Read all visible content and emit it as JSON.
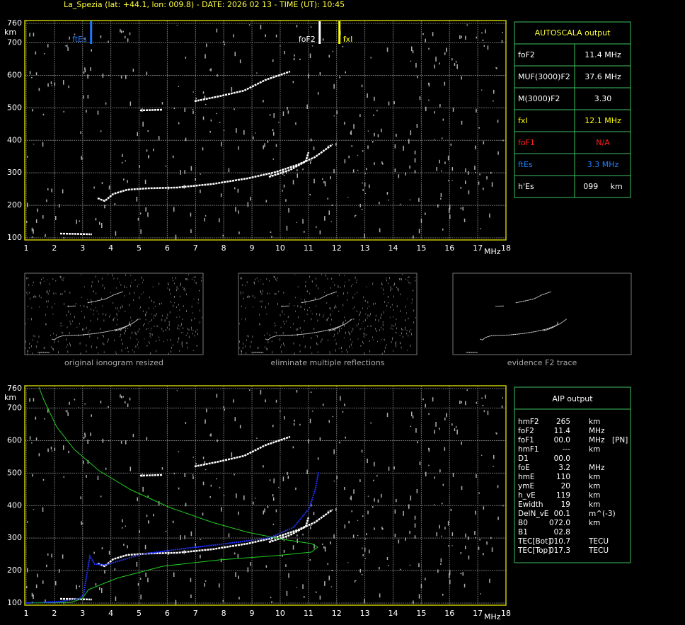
{
  "header": {
    "title": "La_Spezia (lat: +44.1, lon: 009.8) - DATE: 2026 02 13 - TIME (UT): 10:45"
  },
  "ionogram_top": {
    "xticks": [
      1,
      2,
      3,
      4,
      5,
      6,
      7,
      8,
      9,
      10,
      11,
      12,
      13,
      14,
      15,
      16,
      17,
      18
    ],
    "x_unit": "MHz",
    "yticks": [
      100,
      200,
      300,
      400,
      500,
      600,
      700,
      760
    ],
    "y_unit": "km",
    "markers": [
      {
        "label": "ftEs",
        "value": 3.3,
        "color": "#1e78ff"
      },
      {
        "label": "foF2",
        "value": 11.4,
        "color": "#ffffff"
      },
      {
        "label": "fxI",
        "value": 12.1,
        "color": "#ffff00"
      }
    ]
  },
  "autoscala": {
    "title": "AUTOSCALA output",
    "rows": [
      {
        "label": "foF2",
        "value": "11.4 MHz",
        "color": "#ffffff"
      },
      {
        "label": "MUF(3000)F2",
        "value": "37.6 MHz",
        "color": "#ffffff"
      },
      {
        "label": "M(3000)F2",
        "value": "3.30",
        "color": "#ffffff"
      },
      {
        "label": "fxI",
        "value": "12.1 MHz",
        "color": "#ffff00"
      },
      {
        "label": "foF1",
        "value": "N/A",
        "color": "#ff2020"
      },
      {
        "label": "ftEs",
        "value": "3.3 MHz",
        "color": "#2080ff"
      },
      {
        "label": "h'Es",
        "value": "099     km",
        "color": "#ffffff"
      }
    ]
  },
  "thumbnails": [
    "original ionogram resized",
    "eliminate multiple reflections",
    "evidence F2 trace"
  ],
  "ionogram_bottom": {
    "xticks": [
      1,
      2,
      3,
      4,
      5,
      6,
      7,
      8,
      9,
      10,
      11,
      12,
      13,
      14,
      15,
      16,
      17,
      18
    ],
    "x_unit": "MHz",
    "yticks": [
      100,
      200,
      300,
      400,
      500,
      600,
      700,
      760
    ],
    "y_unit": "km"
  },
  "aip": {
    "title": "AIP output",
    "rows": [
      [
        "hmF2",
        "265",
        "km"
      ],
      [
        "foF2",
        "11.4",
        "MHz"
      ],
      [
        "foF1",
        "00.0",
        "MHz",
        "[PN]"
      ],
      [
        "hmF1",
        "---",
        "km"
      ],
      [
        "D1",
        "00.0"
      ],
      [
        "foE",
        "3.2",
        "MHz"
      ],
      [
        "hmE",
        "110",
        "km"
      ],
      [
        "ymE",
        "20",
        "km"
      ],
      [
        "h_vE",
        "119",
        "km"
      ],
      [
        "Ewidth",
        "19",
        "km"
      ],
      [
        "DelN_vE",
        "00.1",
        "m^(-3)"
      ],
      [
        "B0",
        "072.0",
        "km"
      ],
      [
        "B1",
        "02.8"
      ],
      [
        "TEC[Bot]",
        "010.7",
        "TECU"
      ],
      [
        "TEC[Top]",
        "017.3",
        "TECU"
      ]
    ]
  }
}
